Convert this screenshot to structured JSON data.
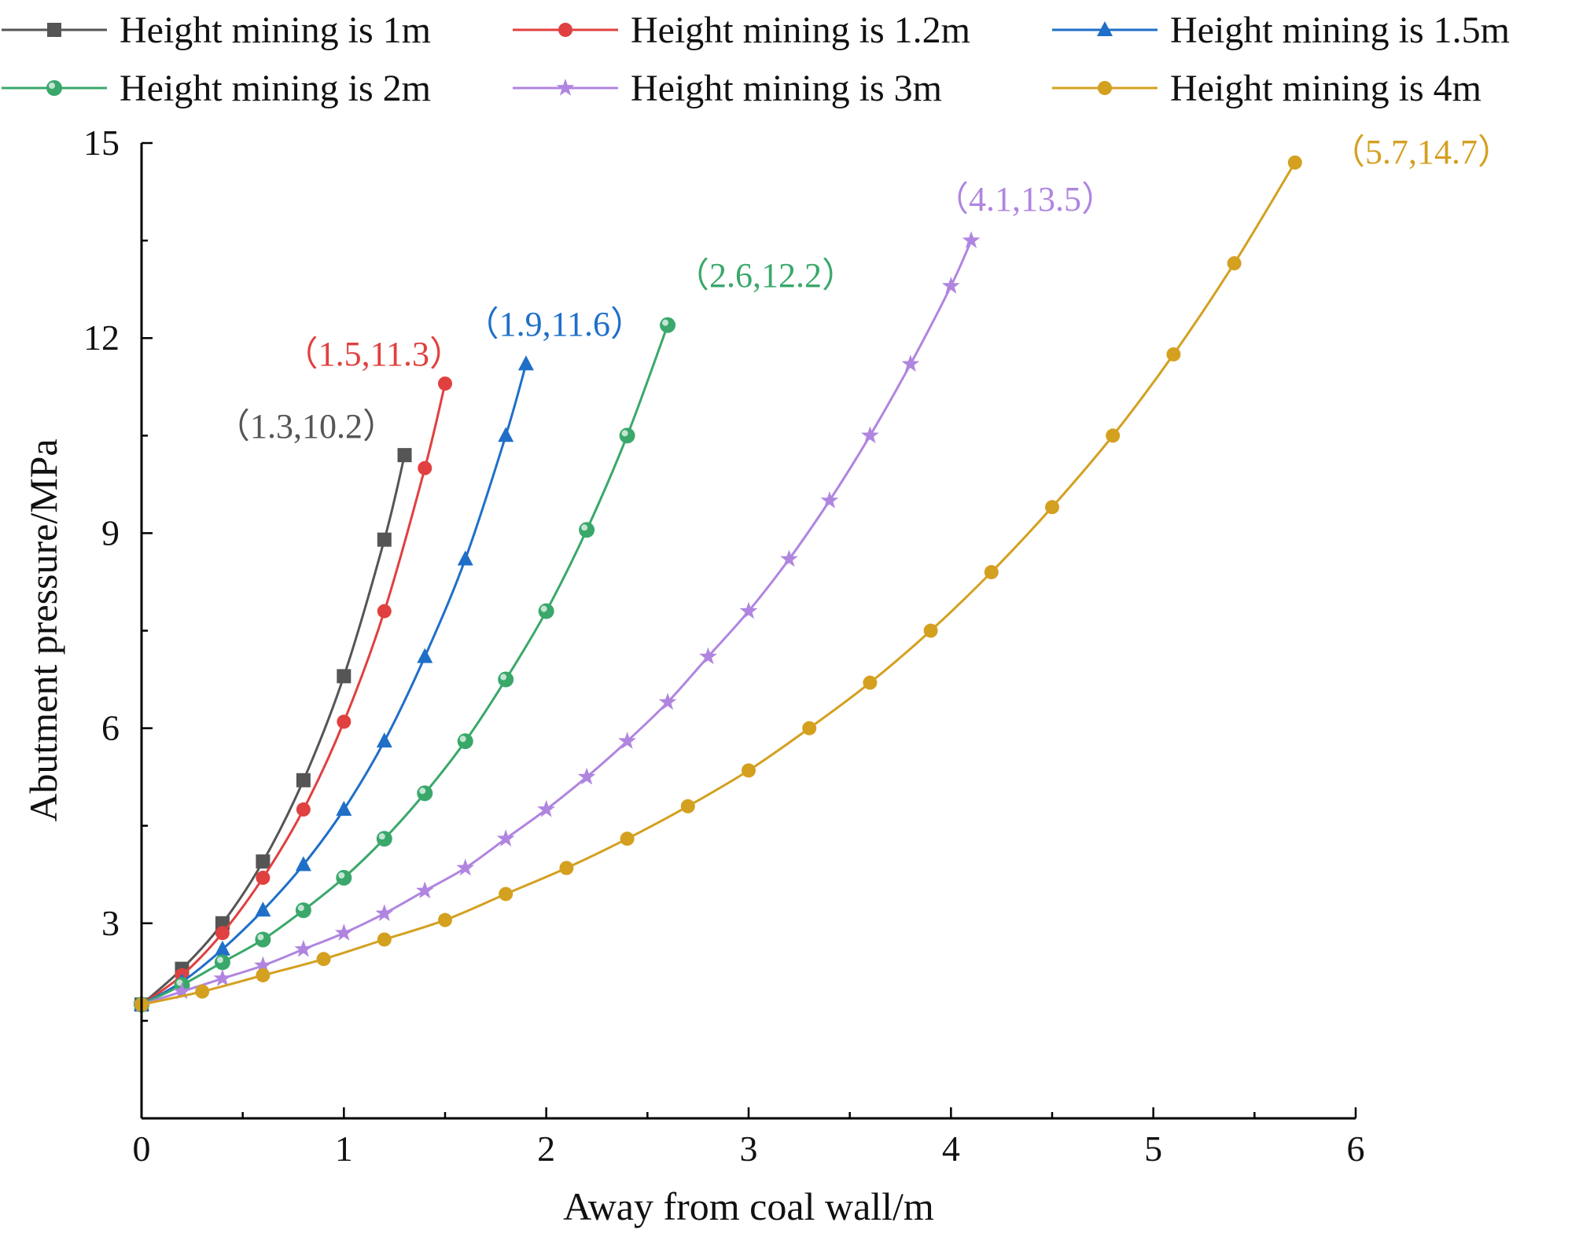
{
  "chart_data": {
    "type": "line",
    "title": "",
    "xlabel": "Away from coal wall/m",
    "ylabel": "Abutment pressure/MPa",
    "xlim": [
      0,
      6
    ],
    "ylim": [
      0,
      15
    ],
    "xticks": [
      0,
      1,
      2,
      3,
      4,
      5,
      6
    ],
    "yticks": [
      3,
      6,
      9,
      12,
      15
    ],
    "x_tick_labels": [
      "0",
      "1",
      "2",
      "3",
      "4",
      "5",
      "6"
    ],
    "y_tick_labels": [
      "3",
      "6",
      "9",
      "12",
      "15"
    ],
    "grid": false,
    "legend_position": "top",
    "series": [
      {
        "name": "Height mining is 1m",
        "color": "#555555",
        "marker": "square",
        "x": [
          0,
          0.2,
          0.4,
          0.6,
          0.8,
          1.0,
          1.2,
          1.3
        ],
        "y": [
          1.75,
          2.3,
          3.0,
          3.95,
          5.2,
          6.8,
          8.9,
          10.2
        ],
        "annotation": "（1.3,10.2）"
      },
      {
        "name": "Height mining is 1.2m",
        "color": "#e0403f",
        "marker": "circle",
        "x": [
          0,
          0.2,
          0.4,
          0.6,
          0.8,
          1.0,
          1.2,
          1.4,
          1.5
        ],
        "y": [
          1.75,
          2.2,
          2.85,
          3.7,
          4.75,
          6.1,
          7.8,
          10.0,
          11.3
        ],
        "annotation": "（1.5,11.3）"
      },
      {
        "name": "Height mining is 1.5m",
        "color": "#1f6fc8",
        "marker": "triangle",
        "x": [
          0,
          0.2,
          0.4,
          0.6,
          0.8,
          1.0,
          1.2,
          1.4,
          1.6,
          1.8,
          1.9
        ],
        "y": [
          1.75,
          2.1,
          2.6,
          3.2,
          3.9,
          4.75,
          5.8,
          7.1,
          8.6,
          10.5,
          11.6
        ],
        "annotation": "（1.9,11.6）"
      },
      {
        "name": "Height mining is 2m",
        "color": "#3aa86b",
        "marker": "ball",
        "x": [
          0,
          0.2,
          0.4,
          0.6,
          0.8,
          1.0,
          1.2,
          1.4,
          1.6,
          1.8,
          2.0,
          2.2,
          2.4,
          2.6
        ],
        "y": [
          1.75,
          2.05,
          2.4,
          2.75,
          3.2,
          3.7,
          4.3,
          5.0,
          5.8,
          6.75,
          7.8,
          9.05,
          10.5,
          12.2
        ],
        "annotation": "（2.6,12.2）"
      },
      {
        "name": "Height mining is 3m",
        "color": "#b085e0",
        "marker": "star",
        "x": [
          0,
          0.2,
          0.4,
          0.6,
          0.8,
          1.0,
          1.2,
          1.4,
          1.6,
          1.8,
          2.0,
          2.2,
          2.4,
          2.6,
          2.8,
          3.0,
          3.2,
          3.4,
          3.6,
          3.8,
          4.0,
          4.1
        ],
        "y": [
          1.75,
          1.95,
          2.15,
          2.35,
          2.6,
          2.85,
          3.15,
          3.5,
          3.85,
          4.3,
          4.75,
          5.25,
          5.8,
          6.4,
          7.1,
          7.8,
          8.6,
          9.5,
          10.5,
          11.6,
          12.8,
          13.5
        ],
        "annotation": "（4.1,13.5）"
      },
      {
        "name": "Height mining is 4m",
        "color": "#d4a020",
        "marker": "circle",
        "x": [
          0,
          0.3,
          0.6,
          0.9,
          1.2,
          1.5,
          1.8,
          2.1,
          2.4,
          2.7,
          3.0,
          3.3,
          3.6,
          3.9,
          4.2,
          4.5,
          4.8,
          5.1,
          5.4,
          5.7
        ],
        "y": [
          1.75,
          1.95,
          2.2,
          2.45,
          2.75,
          3.05,
          3.45,
          3.85,
          4.3,
          4.8,
          5.35,
          6.0,
          6.7,
          7.5,
          8.4,
          9.4,
          10.5,
          11.75,
          13.15,
          14.7
        ],
        "annotation": "（5.7,14.7）"
      }
    ]
  }
}
